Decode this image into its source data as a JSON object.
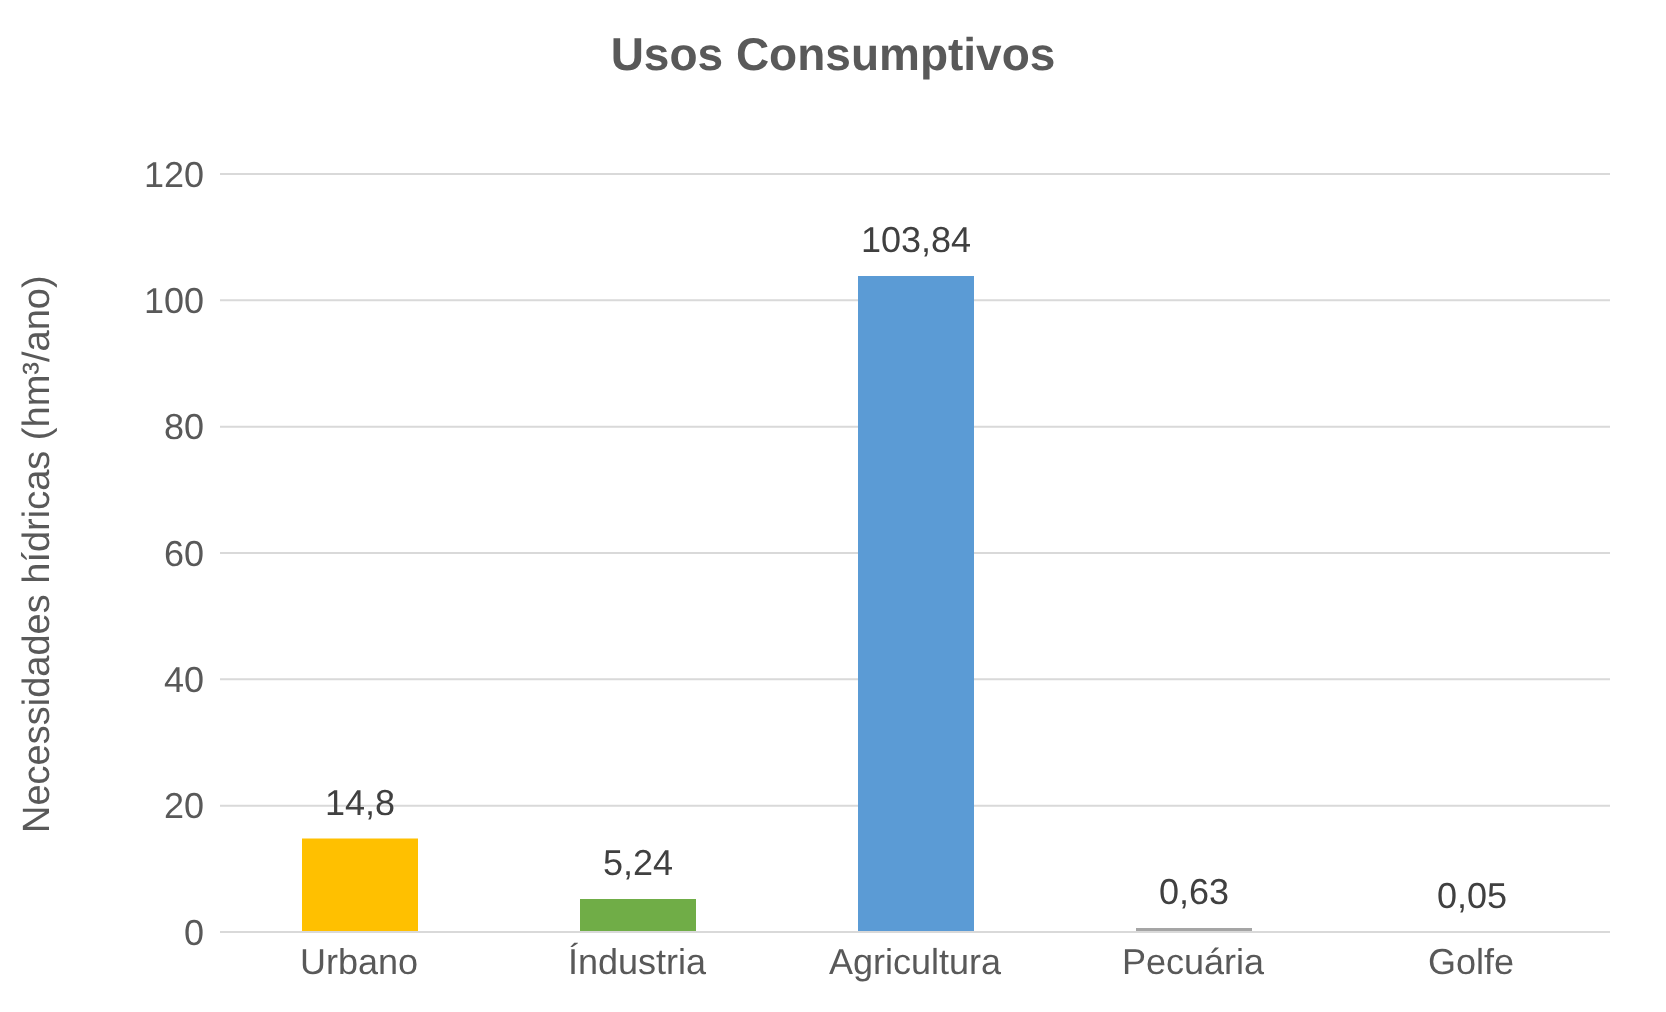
{
  "chart_data": {
    "type": "bar",
    "title": "Usos Consumptivos",
    "ylabel": "Necessidades hídricas (hm³/ano)",
    "categories": [
      "Urbano",
      "Índustria",
      "Agricultura",
      "Pecuária",
      "Golfe"
    ],
    "values": [
      14.8,
      5.24,
      103.84,
      0.63,
      0.05
    ],
    "colors": [
      "#ffc000",
      "#70ad47",
      "#5b9bd5",
      "#a5a5a5",
      "#4472c4"
    ],
    "value_labels": [
      "14,8",
      "5,24",
      "103,84",
      "0,63",
      "0,05"
    ],
    "ylim": [
      0,
      120
    ],
    "yticks": [
      0,
      20,
      40,
      60,
      80,
      100,
      120
    ],
    "grid": "y"
  }
}
